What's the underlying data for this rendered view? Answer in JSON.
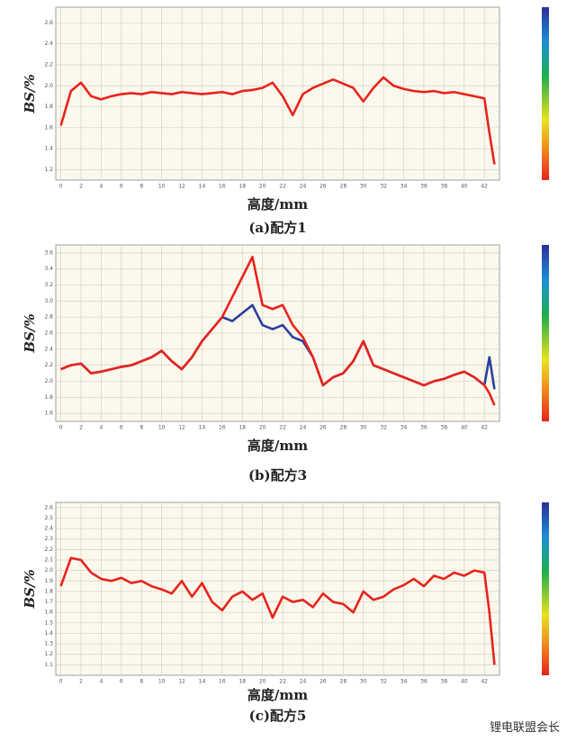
{
  "chart_data": [
    {
      "type": "line",
      "x_label": "高度/mm",
      "y_label": "BS/%",
      "caption": "(a)配方1",
      "x": [
        0,
        1,
        2,
        3,
        4,
        5,
        6,
        7,
        8,
        9,
        10,
        11,
        12,
        13,
        14,
        15,
        16,
        17,
        18,
        19,
        20,
        21,
        22,
        23,
        24,
        25,
        26,
        27,
        28,
        29,
        30,
        31,
        32,
        33,
        34,
        35,
        36,
        37,
        38,
        39,
        40,
        41,
        42,
        42.5,
        43
      ],
      "series": [
        {
          "color": "#e8231c",
          "values": [
            1.62,
            1.95,
            2.03,
            1.9,
            1.87,
            1.9,
            1.92,
            1.93,
            1.92,
            1.94,
            1.93,
            1.92,
            1.94,
            1.93,
            1.92,
            1.93,
            1.94,
            1.92,
            1.95,
            1.96,
            1.98,
            2.03,
            1.9,
            1.72,
            1.92,
            1.98,
            2.02,
            2.06,
            2.02,
            1.98,
            1.85,
            1.98,
            2.08,
            2.0,
            1.97,
            1.95,
            1.94,
            1.95,
            1.93,
            1.94,
            1.92,
            1.9,
            1.88,
            1.55,
            1.25
          ]
        }
      ],
      "xlim": [
        -0.5,
        43.5
      ],
      "xticks": [
        0,
        2,
        4,
        6,
        8,
        10,
        12,
        14,
        16,
        18,
        20,
        22,
        24,
        26,
        28,
        30,
        32,
        34,
        36,
        38,
        40,
        42
      ],
      "ylim": [
        1.1,
        2.75
      ],
      "yticks": [
        1.2,
        1.4,
        1.6,
        1.8,
        {
          "value": 2,
          "label": "2.0"
        },
        2.2,
        2.4,
        2.6
      ],
      "grid": true
    },
    {
      "type": "line",
      "x_label": "高度/mm",
      "y_label": "BS/%",
      "caption": "(b)配方3",
      "x": [
        0,
        1,
        2,
        3,
        4,
        5,
        6,
        7,
        8,
        9,
        10,
        11,
        12,
        13,
        14,
        15,
        16,
        17,
        18,
        19,
        20,
        21,
        22,
        23,
        24,
        25,
        26,
        27,
        28,
        29,
        30,
        31,
        32,
        33,
        34,
        35,
        36,
        37,
        38,
        39,
        40,
        41,
        42,
        42.5,
        43
      ],
      "series": [
        {
          "color": "#2a3f9e",
          "values": [
            2.15,
            2.2,
            2.22,
            2.1,
            2.12,
            2.15,
            2.18,
            2.2,
            2.25,
            2.3,
            2.38,
            2.25,
            2.15,
            2.3,
            2.5,
            2.65,
            2.8,
            2.75,
            2.85,
            2.95,
            2.7,
            2.65,
            2.7,
            2.55,
            2.5,
            2.3,
            1.95,
            2.05,
            2.1,
            2.25,
            2.5,
            2.2,
            2.15,
            2.1,
            2.05,
            2.0,
            1.95,
            2.0,
            2.03,
            2.08,
            2.12,
            2.05,
            1.95,
            2.3,
            1.9
          ]
        },
        {
          "color": "#e8231c",
          "values": [
            2.15,
            2.2,
            2.22,
            2.1,
            2.12,
            2.15,
            2.18,
            2.2,
            2.25,
            2.3,
            2.38,
            2.25,
            2.15,
            2.3,
            2.5,
            2.65,
            2.8,
            3.05,
            3.3,
            3.55,
            2.95,
            2.9,
            2.95,
            2.7,
            2.55,
            2.3,
            1.95,
            2.05,
            2.1,
            2.25,
            2.5,
            2.2,
            2.15,
            2.1,
            2.05,
            2.0,
            1.95,
            2.0,
            2.03,
            2.08,
            2.12,
            2.05,
            1.95,
            1.85,
            1.7
          ]
        }
      ],
      "xlim": [
        -0.5,
        43.5
      ],
      "xticks": [
        0,
        2,
        4,
        6,
        8,
        10,
        12,
        14,
        16,
        18,
        20,
        22,
        24,
        26,
        28,
        30,
        32,
        34,
        36,
        38,
        40,
        42
      ],
      "ylim": [
        1.5,
        3.7
      ],
      "yticks": [
        1.6,
        1.8,
        {
          "value": 2,
          "label": "2.0"
        },
        2.2,
        2.4,
        2.6,
        2.8,
        {
          "value": 3,
          "label": "3.0"
        },
        3.2,
        3.4,
        3.6
      ],
      "grid": true
    },
    {
      "type": "line",
      "x_label": "高度/mm",
      "y_label": "BS/%",
      "caption": "(c)配方5",
      "x": [
        0,
        1,
        2,
        3,
        4,
        5,
        6,
        7,
        8,
        9,
        10,
        11,
        12,
        13,
        14,
        15,
        16,
        17,
        18,
        19,
        20,
        21,
        22,
        23,
        24,
        25,
        26,
        27,
        28,
        29,
        30,
        31,
        32,
        33,
        34,
        35,
        36,
        37,
        38,
        39,
        40,
        41,
        42,
        42.5,
        43
      ],
      "series": [
        {
          "color": "#e8231c",
          "values": [
            1.85,
            2.12,
            2.1,
            1.98,
            1.92,
            1.9,
            1.93,
            1.88,
            1.9,
            1.85,
            1.82,
            1.78,
            1.9,
            1.75,
            1.88,
            1.7,
            1.62,
            1.75,
            1.8,
            1.72,
            1.78,
            1.55,
            1.75,
            1.7,
            1.72,
            1.65,
            1.78,
            1.7,
            1.68,
            1.6,
            1.8,
            1.72,
            1.75,
            1.82,
            1.86,
            1.92,
            1.85,
            1.95,
            1.92,
            1.98,
            1.95,
            2.0,
            1.98,
            1.6,
            1.1
          ]
        }
      ],
      "xlim": [
        -0.5,
        43.5
      ],
      "xticks": [
        0,
        2,
        4,
        6,
        8,
        10,
        12,
        14,
        16,
        18,
        20,
        22,
        24,
        26,
        28,
        30,
        32,
        34,
        36,
        38,
        40,
        42
      ],
      "ylim": [
        1.0,
        2.65
      ],
      "yticks": [
        1.1,
        1.2,
        1.3,
        1.4,
        1.5,
        1.6,
        1.7,
        1.8,
        1.9,
        {
          "value": 2,
          "label": "2.0"
        },
        2.1,
        2.2,
        2.3,
        2.4,
        2.5,
        2.6
      ],
      "grid": true
    }
  ],
  "watermark": "锂电联盟会长"
}
